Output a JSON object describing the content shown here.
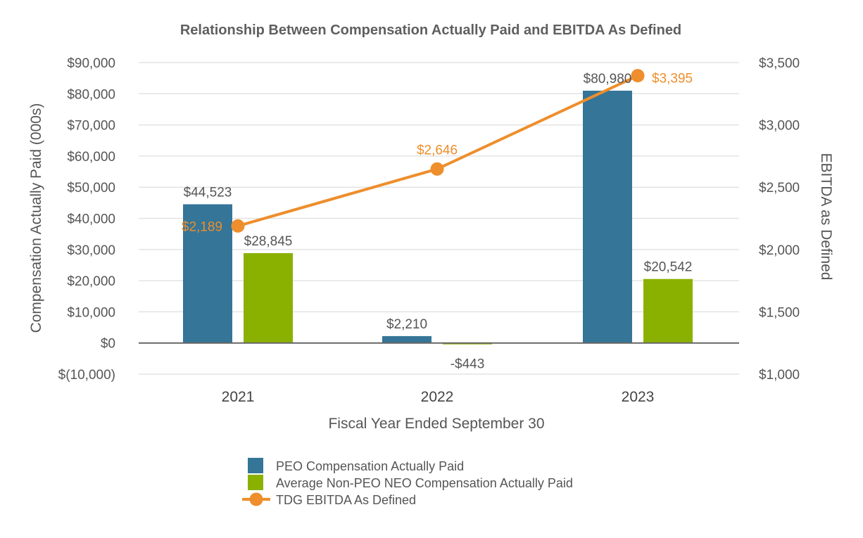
{
  "chart_data": {
    "type": "bar",
    "title": "Relationship Between Compensation Actually Paid and EBITDA As Defined",
    "xlabel": "Fiscal Year Ended September 30",
    "ylabel": "Compensation Actually Paid (000s)",
    "y2label": "EBITDA as Defined",
    "categories": [
      "2021",
      "2022",
      "2023"
    ],
    "ylim": [
      -10000,
      90000
    ],
    "yticks": [
      90000,
      80000,
      70000,
      60000,
      50000,
      40000,
      30000,
      20000,
      10000,
      0,
      -10000
    ],
    "ytick_labels": [
      "$90,000",
      "$80,000",
      "$70,000",
      "$60,000",
      "$50,000",
      "$40,000",
      "$30,000",
      "$20,000",
      "$10,000",
      "$0",
      "$(10,000)"
    ],
    "y2lim": [
      1000,
      3500
    ],
    "y2ticks": [
      3500,
      3000,
      2500,
      2000,
      1500,
      1000
    ],
    "y2tick_labels": [
      "$3,500",
      "$3,000",
      "$2,500",
      "$2,000",
      "$1,500",
      "$1,000"
    ],
    "grid": true,
    "legend_position": "bottom-center",
    "series": [
      {
        "name": "PEO Compensation Actually Paid",
        "kind": "bar",
        "axis": "left",
        "color": "#357597",
        "values": [
          44523,
          2210,
          80980
        ],
        "labels": [
          "$44,523",
          "$2,210",
          "$80,980"
        ]
      },
      {
        "name": "Average Non-PEO NEO Compensation Actually Paid",
        "kind": "bar",
        "axis": "left",
        "color": "#8bb100",
        "values": [
          28845,
          -443,
          20542
        ],
        "labels": [
          "$28,845",
          "-$443",
          "$20,542"
        ]
      },
      {
        "name": "TDG EBITDA As Defined",
        "kind": "line",
        "axis": "right",
        "color": "#ee8e2c",
        "values": [
          2189,
          2646,
          3395
        ],
        "labels": [
          "$2,189",
          "$2,646",
          "$3,395"
        ]
      }
    ]
  }
}
